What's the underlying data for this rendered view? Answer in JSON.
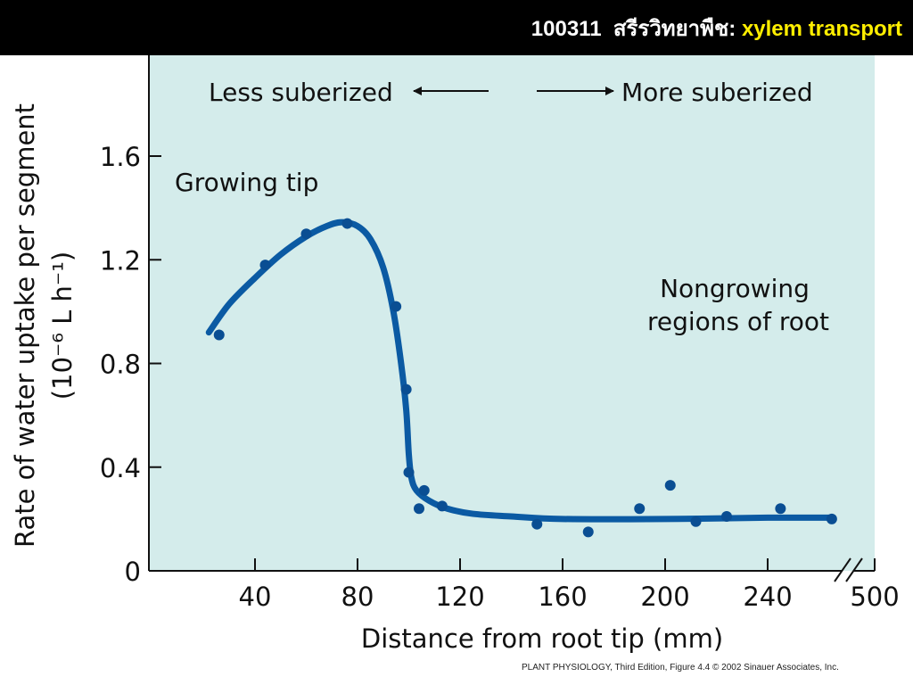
{
  "header": {
    "course_code": "100311",
    "course_name": "สรีรวิทยาพืช:",
    "topic": "xylem transport"
  },
  "colors": {
    "header_bg": "#000000",
    "header_text": "#ffffff",
    "topic_text": "#ffee00",
    "plot_bg": "#d4eceb",
    "curve": "#0b5aa3",
    "points": "#0a4e93"
  },
  "chart_data": {
    "type": "scatter",
    "xlabel": "Distance from root tip (mm)",
    "ylabel_line1": "Rate of water uptake per segment",
    "ylabel_line2": "(10⁻⁶ L h⁻¹)",
    "x_ticks": [
      40,
      80,
      120,
      160,
      200,
      240
    ],
    "x_break_label": "500",
    "y_ticks": [
      0,
      0.4,
      0.8,
      1.2,
      1.6
    ],
    "y_tick_labels": [
      "0",
      "0.4",
      "0.8",
      "1.2",
      "1.6"
    ],
    "xlim": [
      0,
      280
    ],
    "ylim": [
      0,
      1.85
    ],
    "grid": false,
    "annotations": {
      "less": "Less suberized",
      "more": "More suberized",
      "growing": "Growing tip",
      "nongrowing_line1": "Nongrowing",
      "nongrowing_line2": "regions of root"
    },
    "points": [
      {
        "x": 26,
        "y": 0.91
      },
      {
        "x": 44,
        "y": 1.18
      },
      {
        "x": 60,
        "y": 1.3
      },
      {
        "x": 76,
        "y": 1.34
      },
      {
        "x": 95,
        "y": 1.02
      },
      {
        "x": 99,
        "y": 0.7
      },
      {
        "x": 100,
        "y": 0.38
      },
      {
        "x": 106,
        "y": 0.31
      },
      {
        "x": 104,
        "y": 0.24
      },
      {
        "x": 113,
        "y": 0.25
      },
      {
        "x": 150,
        "y": 0.18
      },
      {
        "x": 170,
        "y": 0.15
      },
      {
        "x": 190,
        "y": 0.24
      },
      {
        "x": 202,
        "y": 0.33
      },
      {
        "x": 212,
        "y": 0.19
      },
      {
        "x": 224,
        "y": 0.21
      },
      {
        "x": 245,
        "y": 0.24
      },
      {
        "x": 265,
        "y": 0.2
      }
    ],
    "fit_curve": [
      [
        22,
        0.92
      ],
      [
        30,
        1.03
      ],
      [
        40,
        1.13
      ],
      [
        50,
        1.22
      ],
      [
        60,
        1.29
      ],
      [
        68,
        1.33
      ],
      [
        74,
        1.345
      ],
      [
        80,
        1.33
      ],
      [
        85,
        1.28
      ],
      [
        90,
        1.17
      ],
      [
        94,
        1.0
      ],
      [
        97,
        0.8
      ],
      [
        99,
        0.62
      ],
      [
        100,
        0.45
      ],
      [
        101,
        0.36
      ],
      [
        103,
        0.31
      ],
      [
        108,
        0.27
      ],
      [
        115,
        0.24
      ],
      [
        125,
        0.22
      ],
      [
        140,
        0.21
      ],
      [
        160,
        0.2
      ],
      [
        200,
        0.2
      ],
      [
        240,
        0.205
      ],
      [
        265,
        0.205
      ]
    ]
  },
  "credit": {
    "book": "PLANT PHYSIOLOGY",
    "edition": ", Third Edition, Figure 4.4  © 2002 Sinauer Associates, Inc."
  }
}
